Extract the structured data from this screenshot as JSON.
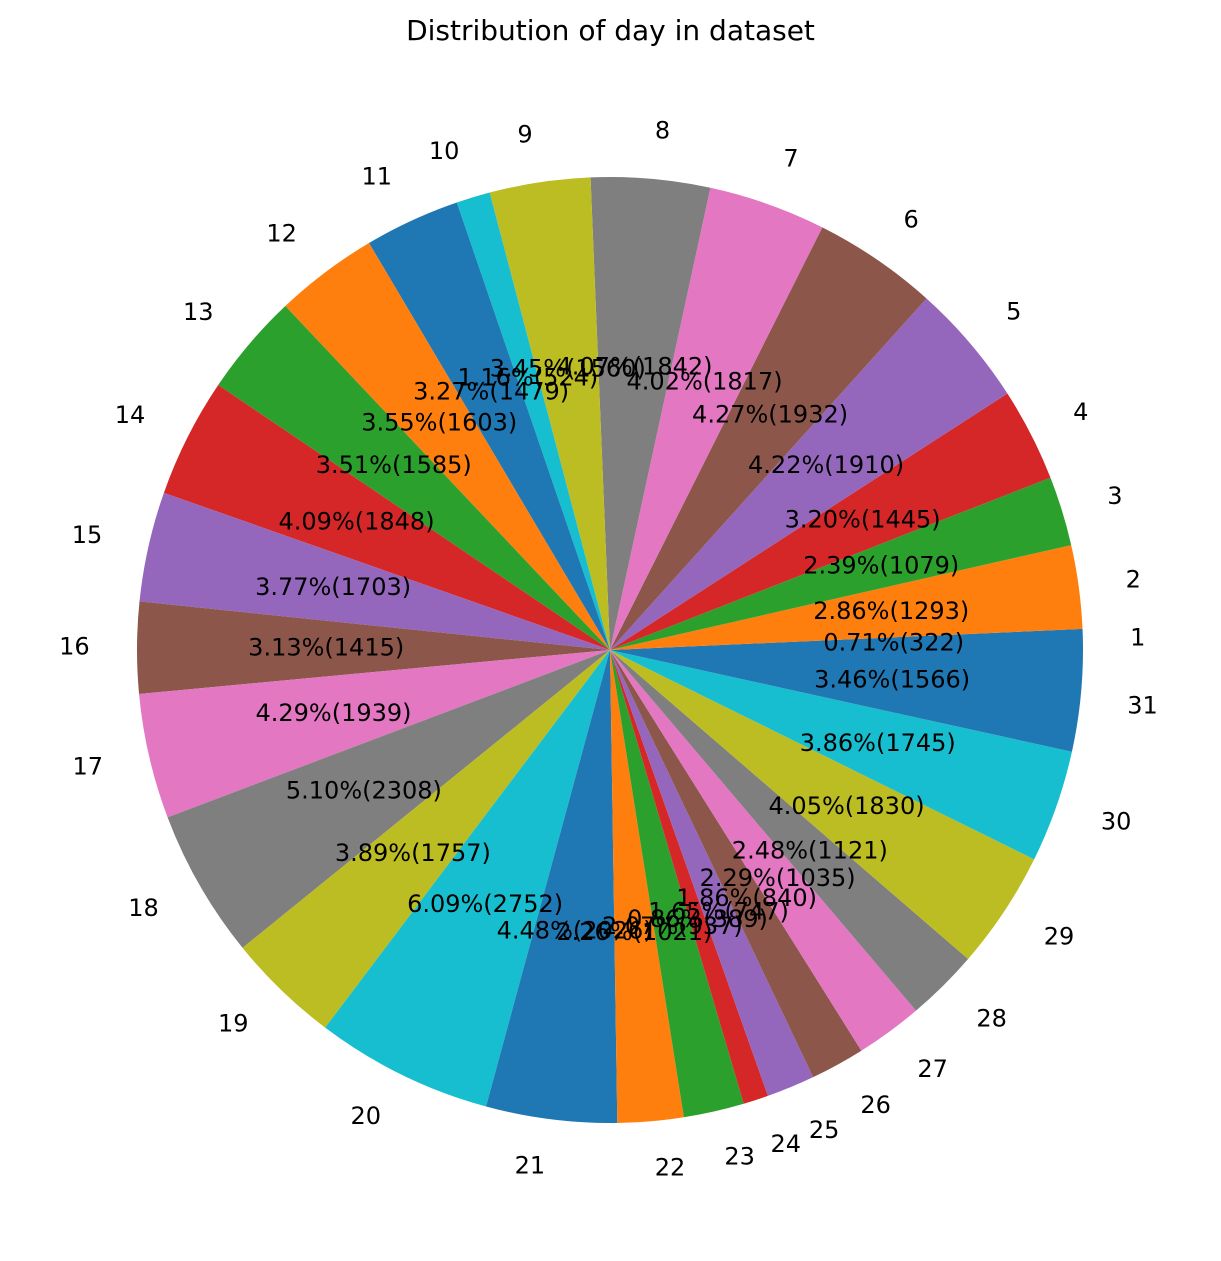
{
  "chart_data": {
    "type": "pie",
    "title": "Distribution of day in dataset",
    "start_angle_deg": 0,
    "direction": "counterclockwise",
    "legend": "none",
    "slices": [
      {
        "label": "1",
        "value": 322,
        "percent_label": "0.71%(322)",
        "color": "#1f77b4"
      },
      {
        "label": "2",
        "value": 1293,
        "percent_label": "2.86%(1293)",
        "color": "#ff7f0e"
      },
      {
        "label": "3",
        "value": 1079,
        "percent_label": "2.39%(1079)",
        "color": "#2ca02c"
      },
      {
        "label": "4",
        "value": 1445,
        "percent_label": "3.20%(1445)",
        "color": "#d62728"
      },
      {
        "label": "5",
        "value": 1910,
        "percent_label": "4.22%(1910)",
        "color": "#9467bd"
      },
      {
        "label": "6",
        "value": 1932,
        "percent_label": "4.27%(1932)",
        "color": "#8c564b"
      },
      {
        "label": "7",
        "value": 1817,
        "percent_label": "4.02%(1817)",
        "color": "#e377c2"
      },
      {
        "label": "8",
        "value": 1842,
        "percent_label": "4.07%(1842)",
        "color": "#7f7f7f"
      },
      {
        "label": "9",
        "value": 1560,
        "percent_label": "3.45%(1560)",
        "color": "#bcbd22"
      },
      {
        "label": "10",
        "value": 524,
        "percent_label": "1.16%(524)",
        "color": "#17becf"
      },
      {
        "label": "11",
        "value": 1479,
        "percent_label": "3.27%(1479)",
        "color": "#1f77b4"
      },
      {
        "label": "12",
        "value": 1603,
        "percent_label": "3.55%(1603)",
        "color": "#ff7f0e"
      },
      {
        "label": "13",
        "value": 1585,
        "percent_label": "3.51%(1585)",
        "color": "#2ca02c"
      },
      {
        "label": "14",
        "value": 1848,
        "percent_label": "4.09%(1848)",
        "color": "#d62728"
      },
      {
        "label": "15",
        "value": 1703,
        "percent_label": "3.77%(1703)",
        "color": "#9467bd"
      },
      {
        "label": "16",
        "value": 1415,
        "percent_label": "3.13%(1415)",
        "color": "#8c564b"
      },
      {
        "label": "17",
        "value": 1939,
        "percent_label": "4.29%(1939)",
        "color": "#e377c2"
      },
      {
        "label": "18",
        "value": 2308,
        "percent_label": "5.10%(2308)",
        "color": "#7f7f7f"
      },
      {
        "label": "19",
        "value": 1757,
        "percent_label": "3.89%(1757)",
        "color": "#bcbd22"
      },
      {
        "label": "20",
        "value": 2752,
        "percent_label": "6.09%(2752)",
        "color": "#17becf"
      },
      {
        "label": "21",
        "value": 2026,
        "percent_label": "4.48%(2026)",
        "color": "#1f77b4"
      },
      {
        "label": "22",
        "value": 1021,
        "percent_label": "2.26%(1021)",
        "color": "#ff7f0e"
      },
      {
        "label": "23",
        "value": 937,
        "percent_label": "2.07%(937)",
        "color": "#2ca02c"
      },
      {
        "label": "24",
        "value": 389,
        "percent_label": "0.86%(389)",
        "color": "#d62728"
      },
      {
        "label": "25",
        "value": 747,
        "percent_label": "1.65%(747)",
        "color": "#9467bd"
      },
      {
        "label": "26",
        "value": 840,
        "percent_label": "1.86%(840)",
        "color": "#8c564b"
      },
      {
        "label": "27",
        "value": 1035,
        "percent_label": "2.29%(1035)",
        "color": "#e377c2"
      },
      {
        "label": "28",
        "value": 1121,
        "percent_label": "2.48%(1121)",
        "color": "#7f7f7f"
      },
      {
        "label": "29",
        "value": 1830,
        "percent_label": "4.05%(1830)",
        "color": "#bcbd22"
      },
      {
        "label": "30",
        "value": 1745,
        "percent_label": "3.86%(1745)",
        "color": "#17becf"
      },
      {
        "label": "31",
        "value": 1566,
        "percent_label": "3.46%(1566)",
        "color": "#1f77b4"
      }
    ]
  }
}
